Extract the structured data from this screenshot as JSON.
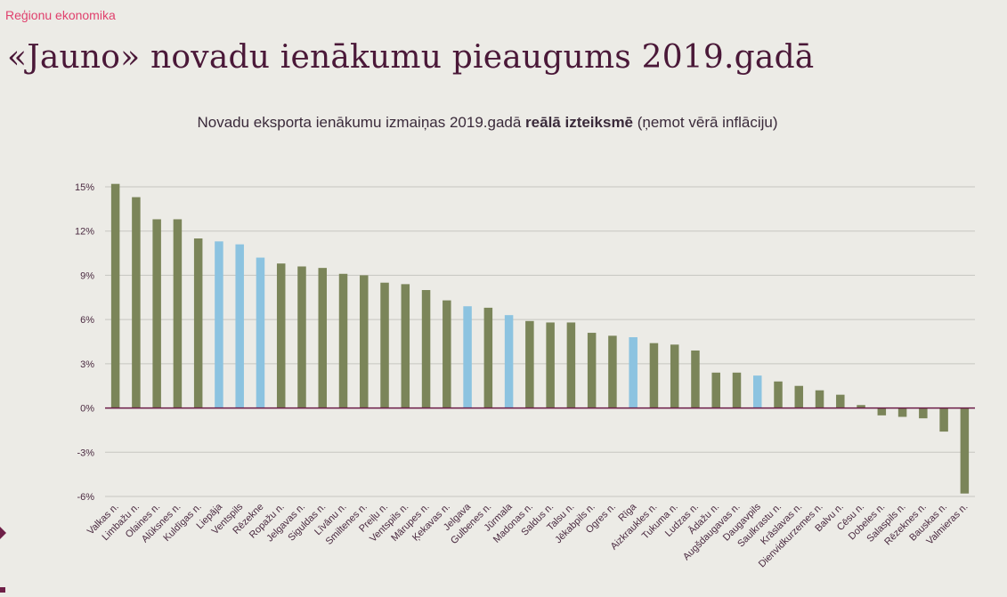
{
  "header": {
    "section": "Reģionu ekonomika",
    "title": "«Jauno» novadu ienākumu pieaugums 2019.gadā"
  },
  "chart_title": {
    "prefix": "Novadu eksporta ienākumu izmaiņas 2019.gadā ",
    "bold": "reālā izteiksmē",
    "suffix": " (ņemot vērā inflāciju)"
  },
  "colors": {
    "novads": "#7b8559",
    "city": "#8cc3e0",
    "grid": "#c6c6c0",
    "zero_line": "#6a1a45",
    "tick_text": "#4a2a40"
  },
  "chart_data": {
    "type": "bar",
    "title": "Novadu eksporta ienākumu izmaiņas 2019.gadā reālā izteiksmē (ņemot vērā inflāciju)",
    "xlabel": "",
    "ylabel": "",
    "ylim": [
      -6,
      15
    ],
    "yticks": [
      15,
      12,
      9,
      6,
      3,
      0,
      -3,
      -6
    ],
    "ytick_labels": [
      "15%",
      "12%",
      "9%",
      "6%",
      "3%",
      "0%",
      "-3%",
      "-6%"
    ],
    "grid": true,
    "categories": [
      "Valkas n.",
      "Limbažu n.",
      "Olaines n.",
      "Alūksnes n.",
      "Kuldīgas n.",
      "Liepāja",
      "Ventspils",
      "Rēzekne",
      "Ropažu n.",
      "Jelgavas n.",
      "Siguldas n.",
      "Līvānu n.",
      "Smiltenes n.",
      "Preiļu n.",
      "Ventspils n.",
      "Mārupes n.",
      "Ķekavas n.",
      "Jelgava",
      "Gulbenes n.",
      "Jūrmala",
      "Madonas n.",
      "Saldus n.",
      "Talsu n.",
      "Jēkabpils n.",
      "Ogres n.",
      "Rīga",
      "Aizkraukles n.",
      "Tukuma n.",
      "Ludzas n.",
      "Ādažu n.",
      "Augšdaugavas n.",
      "Daugavpils",
      "Saulkrastu n.",
      "Krāslavas n.",
      "Dienvidkurzemes n.",
      "Balvu n.",
      "Cēsu n.",
      "Dobeles n.",
      "Salaspils n.",
      "Rēzeknes n.",
      "Bauskas n.",
      "Valmieras n."
    ],
    "values": [
      15.2,
      14.3,
      12.8,
      12.8,
      11.5,
      11.3,
      11.1,
      10.2,
      9.8,
      9.6,
      9.5,
      9.1,
      9.0,
      8.5,
      8.4,
      8.0,
      7.3,
      6.9,
      6.8,
      6.3,
      5.9,
      5.8,
      5.8,
      5.1,
      4.9,
      4.8,
      4.4,
      4.3,
      3.9,
      2.4,
      2.4,
      2.2,
      1.8,
      1.5,
      1.2,
      0.9,
      0.2,
      -0.5,
      -0.6,
      -0.7,
      -1.6,
      -5.8
    ],
    "is_city": [
      false,
      false,
      false,
      false,
      false,
      true,
      true,
      true,
      false,
      false,
      false,
      false,
      false,
      false,
      false,
      false,
      false,
      true,
      false,
      true,
      false,
      false,
      false,
      false,
      false,
      true,
      false,
      false,
      false,
      false,
      false,
      true,
      false,
      false,
      false,
      false,
      false,
      false,
      false,
      false,
      false,
      false
    ]
  }
}
